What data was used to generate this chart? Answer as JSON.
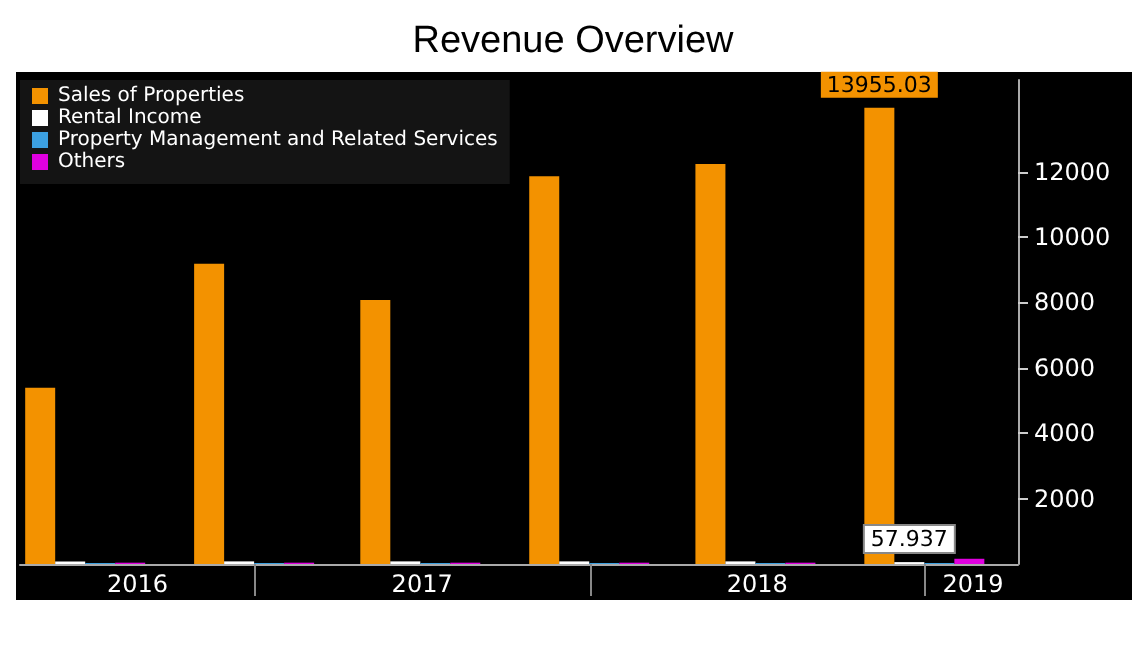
{
  "chart_data": {
    "type": "bar",
    "title": "Revenue Overview",
    "x": [
      "2016-06-30",
      "2016-12-31",
      "2017-06-30",
      "2017-12-31",
      "2018-06-30",
      "2018-12-31"
    ],
    "xlim": [
      "2016-04-20",
      "2019-04-12"
    ],
    "xticks": [
      {
        "value": "2016-08-26",
        "label": "2016"
      },
      {
        "value": "2017-01-01",
        "label": null
      },
      {
        "value": "2017-07-02",
        "label": "2017"
      },
      {
        "value": "2018-01-01",
        "label": null
      },
      {
        "value": "2018-07-02",
        "label": "2018"
      },
      {
        "value": "2019-01-01",
        "label": null
      },
      {
        "value": "2019-02-22",
        "label": "2019"
      }
    ],
    "ylim": [
      0,
      14800
    ],
    "yticks": [
      2000,
      4000,
      6000,
      8000,
      10000,
      12000
    ],
    "series": [
      {
        "name": "Sales of Properties",
        "color": "#f39200",
        "values": [
          5390,
          9180,
          8070,
          11860,
          12230,
          13955.03
        ],
        "value_labels": [
          null,
          null,
          null,
          null,
          null,
          "13955.03"
        ]
      },
      {
        "name": "Rental Income",
        "color": "#ffffff",
        "values": [
          80,
          80,
          80,
          80,
          80,
          57.937
        ],
        "value_labels": [
          null,
          null,
          null,
          null,
          null,
          "57.937"
        ]
      },
      {
        "name": "Property Management and Related Services",
        "color": "#3ca0e0",
        "values": [
          30,
          30,
          30,
          30,
          30,
          30
        ]
      },
      {
        "name": "Others",
        "color": "#e000e0",
        "values": [
          40,
          40,
          40,
          40,
          40,
          160
        ]
      }
    ],
    "legend": "top left",
    "grid": false
  }
}
